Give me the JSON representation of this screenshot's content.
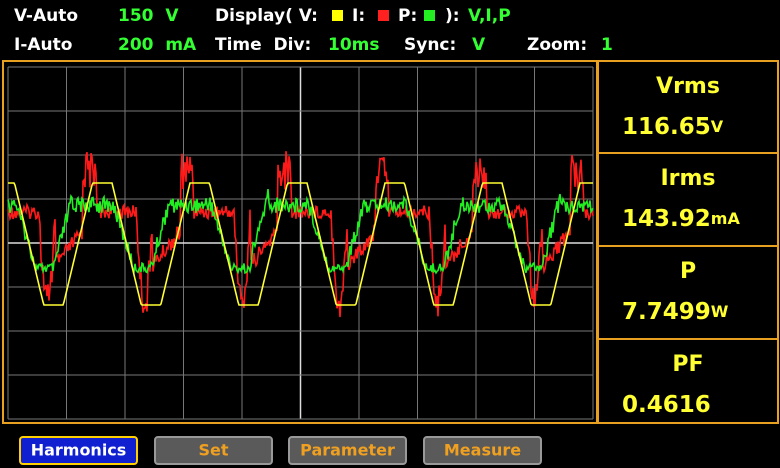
{
  "header": {
    "row1": {
      "range_mode": "V-Auto",
      "range": "150  V",
      "display_label": "Display( V:",
      "i_label": "I:",
      "p_label": "P:",
      "display_close": "):",
      "display_value": "V,I,P"
    },
    "row2": {
      "range_mode": "I-Auto",
      "range": "200  mA",
      "time_label": "Time  Div:",
      "time_value": "10ms",
      "sync_label": "Sync:",
      "sync_value": "V",
      "zoom_label": "Zoom:",
      "zoom_value": "1"
    }
  },
  "readings": [
    {
      "label": "Vrms",
      "value": "116.65",
      "unit": "V"
    },
    {
      "label": "Irms",
      "value": "143.92",
      "unit": "mA"
    },
    {
      "label": "P",
      "value": "7.7499",
      "unit": "W"
    },
    {
      "label": "PF",
      "value": "0.4616"
    }
  ],
  "buttons": [
    "Harmonics",
    "Set",
    "Parameter",
    "Measure"
  ]
}
